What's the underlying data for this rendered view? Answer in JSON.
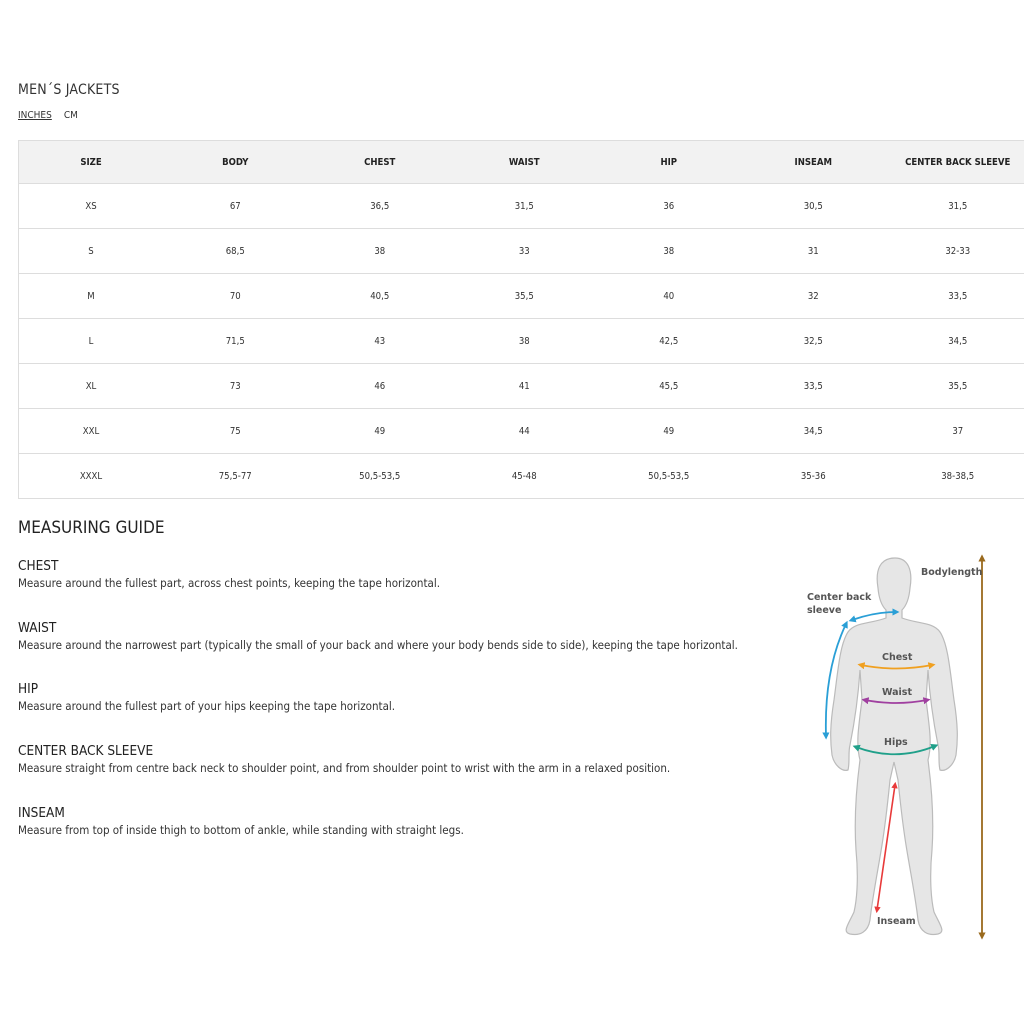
{
  "title": "MEN´S JACKETS",
  "units": {
    "inches": "INCHES",
    "cm": "CM",
    "active": "inches"
  },
  "table": {
    "headers": [
      "SIZE",
      "BODY",
      "CHEST",
      "WAIST",
      "HIP",
      "INSEAM",
      "CENTER BACK SLEEVE"
    ],
    "rows": [
      [
        "XS",
        "67",
        "36,5",
        "31,5",
        "36",
        "30,5",
        "31,5"
      ],
      [
        "S",
        "68,5",
        "38",
        "33",
        "38",
        "31",
        "32-33"
      ],
      [
        "M",
        "70",
        "40,5",
        "35,5",
        "40",
        "32",
        "33,5"
      ],
      [
        "L",
        "71,5",
        "43",
        "38",
        "42,5",
        "32,5",
        "34,5"
      ],
      [
        "XL",
        "73",
        "46",
        "41",
        "45,5",
        "33,5",
        "35,5"
      ],
      [
        "XXL",
        "75",
        "49",
        "44",
        "49",
        "34,5",
        "37"
      ],
      [
        "XXXL",
        "75,5-77",
        "50,5-53,5",
        "45-48",
        "50,5-53,5",
        "35-36",
        "38-38,5"
      ]
    ]
  },
  "guide": {
    "heading": "MEASURING GUIDE",
    "sections": [
      {
        "title": "CHEST",
        "text": "Measure around the fullest part, across chest points, keeping the tape horizontal."
      },
      {
        "title": "WAIST",
        "text": "Measure around the narrowest part (typically the small of your back and where your body bends side to side), keeping the tape horizontal."
      },
      {
        "title": "HIP",
        "text": "Measure around the fullest part of your hips keeping the tape horizontal."
      },
      {
        "title": "CENTER BACK SLEEVE",
        "text": "Measure straight from centre back neck to shoulder point, and from shoulder point to wrist with the arm in a relaxed position."
      },
      {
        "title": "INSEAM",
        "text": "Measure from top of inside thigh to bottom of ankle, while standing with straight legs."
      }
    ]
  },
  "figure": {
    "labels": {
      "bodylength": "Bodylength",
      "cbs1": "Center back",
      "cbs2": "sleeve",
      "chest": "Chest",
      "waist": "Waist",
      "hips": "Hips",
      "inseam": "Inseam"
    },
    "colors": {
      "bodylength": "#9a6a1e",
      "sleeve": "#2a9fd6",
      "chest": "#f0a020",
      "waist": "#a040a0",
      "hips": "#20a08a",
      "inseam": "#e83a3a",
      "body": "#e6e6e6"
    }
  }
}
